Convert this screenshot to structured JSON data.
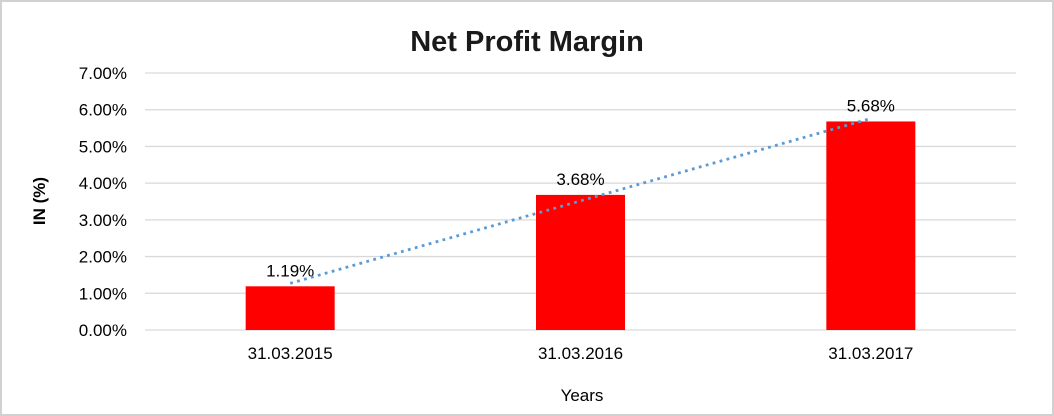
{
  "window": {
    "background_color": "#ffffff",
    "border_color": "#d1d1d1"
  },
  "chart_data": {
    "type": "bar",
    "title": "Net Profit Margin",
    "xlabel": "Years",
    "ylabel": "IN (%)",
    "categories": [
      "31.03.2015",
      "31.03.2016",
      "31.03.2017"
    ],
    "values": [
      1.19,
      3.68,
      5.68
    ],
    "data_labels": [
      "1.19%",
      "3.68%",
      "5.68%"
    ],
    "ylim": [
      0,
      7
    ],
    "ytick_labels": [
      "0.00%",
      "1.00%",
      "2.00%",
      "3.00%",
      "4.00%",
      "5.00%",
      "6.00%",
      "7.00%"
    ],
    "grid": true,
    "legend": "none",
    "bar_color": "#ff0000",
    "gridline_color": "#d9d9d9",
    "text_color": "#000000",
    "trendline": {
      "type": "linear",
      "style": "dotted",
      "color": "#5b9bd5"
    }
  }
}
